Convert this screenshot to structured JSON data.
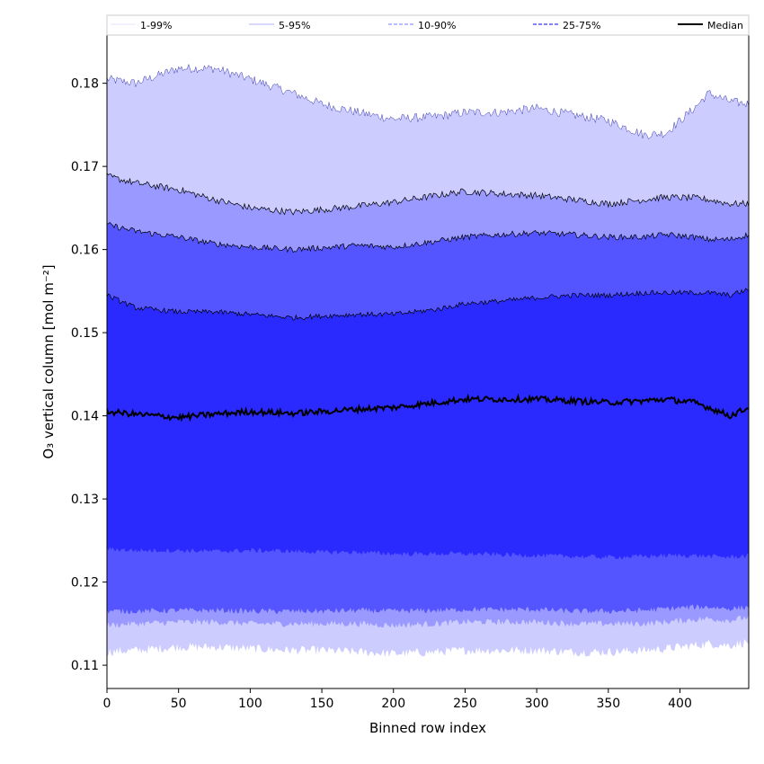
{
  "chart_data": {
    "type": "area",
    "xlabel": "Binned row index",
    "ylabel": "O₃ vertical column [mol m⁻²]",
    "xlim": [
      0,
      448
    ],
    "ylim": [
      0.1072,
      0.1858
    ],
    "xticks": [
      0,
      50,
      100,
      150,
      200,
      250,
      300,
      350,
      400
    ],
    "yticks": [
      0.11,
      0.12,
      0.13,
      0.14,
      0.15,
      0.16,
      0.17,
      0.18
    ],
    "legend_position": "top",
    "x_knots": [
      0,
      20,
      50,
      75,
      100,
      130,
      150,
      175,
      200,
      230,
      250,
      275,
      300,
      325,
      350,
      375,
      390,
      410,
      420,
      435,
      448
    ],
    "bands": [
      {
        "name": "1-99%",
        "color": "#ccccff",
        "lower": [
          0.1116,
          0.1118,
          0.1122,
          0.1122,
          0.112,
          0.1118,
          0.1118,
          0.1116,
          0.1114,
          0.1116,
          0.1118,
          0.1118,
          0.1118,
          0.1116,
          0.1116,
          0.1118,
          0.112,
          0.1124,
          0.1126,
          0.1124,
          0.1128
        ],
        "upper": [
          0.1805,
          0.18,
          0.1818,
          0.1818,
          0.1805,
          0.1788,
          0.1775,
          0.1765,
          0.1757,
          0.176,
          0.1765,
          0.1765,
          0.177,
          0.1762,
          0.1755,
          0.1738,
          0.174,
          0.177,
          0.1788,
          0.1778,
          0.1775
        ]
      },
      {
        "name": "5-95%",
        "color": "#9999ff",
        "lower": [
          0.1148,
          0.115,
          0.1152,
          0.1152,
          0.115,
          0.115,
          0.115,
          0.115,
          0.1148,
          0.115,
          0.1152,
          0.1152,
          0.1152,
          0.115,
          0.115,
          0.115,
          0.1152,
          0.1155,
          0.1156,
          0.1154,
          0.1158
        ],
        "upper": [
          0.1688,
          0.168,
          0.1672,
          0.166,
          0.165,
          0.1645,
          0.1648,
          0.1652,
          0.1657,
          0.1665,
          0.167,
          0.1667,
          0.1665,
          0.166,
          0.1655,
          0.166,
          0.1663,
          0.1662,
          0.166,
          0.1655,
          0.1655
        ]
      },
      {
        "name": "10-90%",
        "color": "#5555ff",
        "lower": [
          0.1165,
          0.1165,
          0.1166,
          0.1166,
          0.1165,
          0.1165,
          0.1165,
          0.1166,
          0.1165,
          0.1166,
          0.1167,
          0.1167,
          0.1167,
          0.1165,
          0.1165,
          0.1166,
          0.1168,
          0.117,
          0.117,
          0.1168,
          0.117
        ],
        "upper": [
          0.163,
          0.1622,
          0.1615,
          0.1607,
          0.1603,
          0.16,
          0.1602,
          0.1605,
          0.1603,
          0.161,
          0.1615,
          0.1618,
          0.162,
          0.1618,
          0.1615,
          0.1615,
          0.1618,
          0.1615,
          0.1612,
          0.1612,
          0.1618
        ]
      },
      {
        "name": "25-75%",
        "color": "#2a2aff",
        "lower": [
          0.124,
          0.1238,
          0.1238,
          0.1237,
          0.1238,
          0.1237,
          0.1236,
          0.1236,
          0.1234,
          0.1234,
          0.1234,
          0.1233,
          0.1232,
          0.1231,
          0.123,
          0.1231,
          0.1232,
          0.1232,
          0.1231,
          0.123,
          0.1232
        ],
        "upper": [
          0.1545,
          0.153,
          0.1525,
          0.1525,
          0.1522,
          0.1518,
          0.152,
          0.1522,
          0.1522,
          0.1528,
          0.1535,
          0.1538,
          0.1542,
          0.1545,
          0.1545,
          0.1548,
          0.1548,
          0.1548,
          0.1548,
          0.1545,
          0.1552
        ]
      }
    ],
    "median": {
      "name": "Median",
      "color": "#000000",
      "values": [
        0.1405,
        0.1402,
        0.1398,
        0.1402,
        0.1405,
        0.1403,
        0.1405,
        0.1408,
        0.141,
        0.1416,
        0.142,
        0.142,
        0.142,
        0.1418,
        0.1416,
        0.1418,
        0.142,
        0.1416,
        0.141,
        0.14,
        0.141
      ]
    },
    "legend": [
      {
        "label": "1-99%",
        "color": "#ccccff",
        "style": "solid",
        "width": 0.5
      },
      {
        "label": "5-95%",
        "color": "#9999ff",
        "style": "solid",
        "width": 0.7
      },
      {
        "label": "10-90%",
        "color": "#7777ff",
        "style": "dashed",
        "width": 1
      },
      {
        "label": "25-75%",
        "color": "#3333ff",
        "style": "dashed",
        "width": 1.2
      },
      {
        "label": "Median",
        "color": "#000000",
        "style": "solid",
        "width": 2
      }
    ]
  }
}
